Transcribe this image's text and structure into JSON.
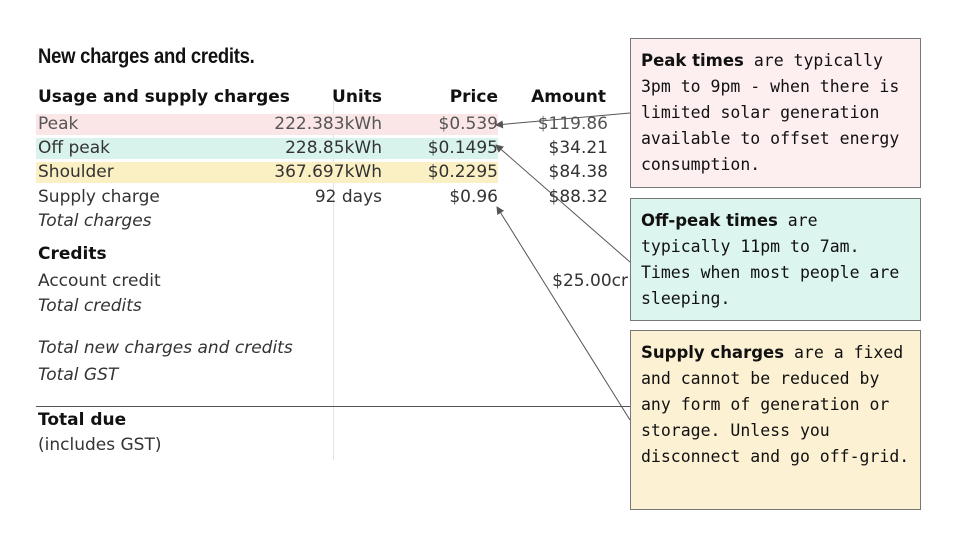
{
  "title": "New charges and credits.",
  "table": {
    "headers": {
      "description": "Usage and supply charges",
      "units": "Units",
      "price": "Price",
      "amount": "Amount"
    },
    "rows": [
      {
        "label": "Peak",
        "units": "222.383kWh",
        "price": "$0.539",
        "amount": "$119.86",
        "highlight": "#fbe6e7"
      },
      {
        "label": "Off peak",
        "units": "228.85kWh",
        "price": "$0.1495",
        "amount": "$34.21",
        "highlight": "#d8f3ec"
      },
      {
        "label": "Shoulder",
        "units": "367.697kWh",
        "price": "$0.2295",
        "amount": "$84.38",
        "highlight": "#fbefc4"
      },
      {
        "label": "Supply charge",
        "units": "92 days",
        "price": "$0.96",
        "amount": "$88.32"
      }
    ],
    "total_charges": "Total charges",
    "credits_heading": "Credits",
    "account_credit": {
      "label": "Account credit",
      "amount": "$25.00cr"
    },
    "total_credits": "Total credits",
    "total_new": "Total new charges and credits",
    "total_gst": "Total GST",
    "total_due": "Total due",
    "includes_gst": "(includes GST)"
  },
  "callouts": {
    "peak": {
      "bold": "Peak times",
      "text": " are typically 3pm to 9pm - when there is limited solar generation available to offset energy consumption.",
      "background": "#fdeef0"
    },
    "offpeak": {
      "bold": "Off-peak times",
      "text": " are typically 11pm to 7am. Times when most people are sleeping.",
      "background": "#dcf5ee"
    },
    "supply": {
      "bold": "Supply charges",
      "text": " are a fixed and cannot be reduced by any form of generation or storage. Unless you disconnect and go off-grid.",
      "background": "#fdf1d3"
    }
  }
}
